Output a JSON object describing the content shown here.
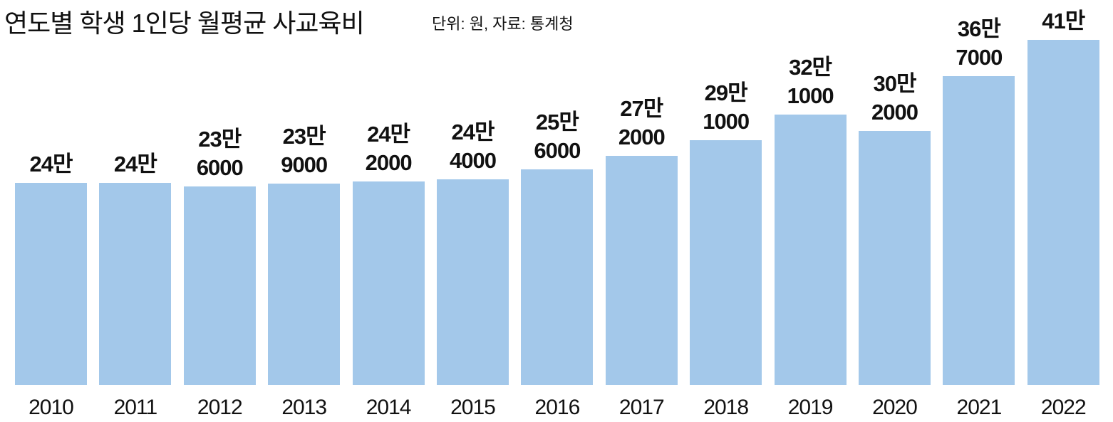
{
  "chart_data": {
    "type": "bar",
    "title": "연도별 학생 1인당 월평균 사교육비",
    "subtitle": "단위: 원, 자료: 통계청",
    "categories": [
      "2010",
      "2011",
      "2012",
      "2013",
      "2014",
      "2015",
      "2016",
      "2017",
      "2018",
      "2019",
      "2020",
      "2021",
      "2022"
    ],
    "values": [
      240000,
      240000,
      236000,
      239000,
      242000,
      244000,
      256000,
      272000,
      291000,
      321000,
      302000,
      367000,
      410000
    ],
    "value_labels": [
      "24만",
      "24만",
      "23만 6000",
      "23만 9000",
      "24만 2000",
      "24만 4000",
      "25만 6000",
      "27만 2000",
      "29만 1000",
      "32만 1000",
      "30만 2000",
      "36만 7000",
      "41만"
    ],
    "color": "#a3c8ea"
  }
}
